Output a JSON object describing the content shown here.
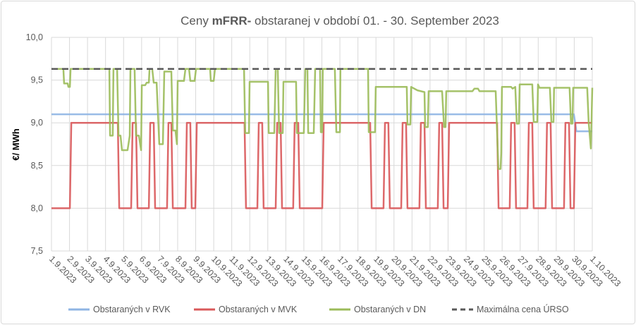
{
  "chart_data": {
    "type": "line",
    "title_parts": [
      "Ceny ",
      "mFRR-",
      " obstaranej v období 01. - 30. September 2023"
    ],
    "xlabel": "",
    "ylabel": "€/ MWh",
    "ylim": [
      7.5,
      10.0
    ],
    "yticks": [
      7.5,
      8.0,
      8.5,
      9.0,
      9.5,
      10.0
    ],
    "ytick_labels": [
      "7,5",
      "8,0",
      "8,5",
      "9,0",
      "9,5",
      "10,0"
    ],
    "x_unit": "days since 1.9.2023",
    "xlim": [
      0,
      30
    ],
    "xtick_labels": [
      "1.9.2023",
      "2.9.2023",
      "3.9.2023",
      "4.9.2023",
      "5.9.2023",
      "6.9.2023",
      "7.9.2023",
      "8.9.2023",
      "9.9.2023",
      "10.9.2023",
      "11.9.2023",
      "12.9.2023",
      "13.9.2023",
      "14.9.2023",
      "15.9.2023",
      "16.9.2023",
      "17.9.2023",
      "18.9.2023",
      "19.9.2023",
      "20.9.2023",
      "21.9.2023",
      "22.9.2023",
      "23.9.2023",
      "24.9.2023",
      "25.9.2023",
      "26.9.2023",
      "27.9.2023",
      "28.9.2023",
      "29.9.2023",
      "30.9.2023",
      "1.10.2023"
    ],
    "grid": true,
    "legend_position": "bottom",
    "series": [
      {
        "name": "Obstaraných v RVK",
        "color": "#8eb4e3",
        "dash": false,
        "points": [
          [
            0,
            9.1
          ],
          [
            28.98,
            9.1
          ],
          [
            29.12,
            8.9
          ],
          [
            30,
            8.9
          ]
        ]
      },
      {
        "name": "Obstaraných v MVK",
        "color": "#d9585a",
        "dash": false,
        "start_value": 8.0,
        "switch_days": [
          1.02,
          3.68,
          4.42,
          4.69,
          5.4,
          5.67,
          6.41,
          6.65,
          7.43,
          7.7,
          7.98,
          10.71,
          11.42,
          11.69,
          12.44,
          12.71,
          13.41,
          13.69,
          15.02,
          17.68,
          18.42,
          18.69,
          19.4,
          19.67,
          20.41,
          20.69,
          21.43,
          21.67,
          21.98,
          24.72,
          25.42,
          25.69,
          26.4,
          26.67,
          27.41,
          27.69,
          28.43,
          28.71,
          28.98
        ],
        "alt_values": [
          8.0,
          9.0
        ]
      },
      {
        "name": "Obstaraných v DN",
        "color": "#9bbb59",
        "dash": false,
        "points": [
          [
            0,
            9.63
          ],
          [
            0.66,
            9.63
          ],
          [
            0.7,
            9.46
          ],
          [
            0.9,
            9.46
          ],
          [
            0.94,
            9.42
          ],
          [
            1.02,
            9.42
          ],
          [
            1.06,
            9.63
          ],
          [
            3.21,
            9.63
          ],
          [
            3.25,
            8.85
          ],
          [
            3.4,
            8.85
          ],
          [
            3.44,
            9.63
          ],
          [
            3.64,
            9.63
          ],
          [
            3.72,
            8.85
          ],
          [
            3.83,
            8.85
          ],
          [
            3.91,
            8.68
          ],
          [
            4.22,
            8.68
          ],
          [
            4.34,
            8.85
          ],
          [
            4.38,
            9.63
          ],
          [
            4.61,
            9.63
          ],
          [
            4.69,
            8.85
          ],
          [
            4.85,
            8.85
          ],
          [
            4.97,
            8.68
          ],
          [
            5.01,
            9.44
          ],
          [
            5.2,
            9.44
          ],
          [
            5.28,
            9.47
          ],
          [
            5.4,
            9.47
          ],
          [
            5.44,
            9.63
          ],
          [
            5.59,
            9.63
          ],
          [
            5.67,
            9.47
          ],
          [
            5.83,
            9.47
          ],
          [
            5.98,
            8.75
          ],
          [
            6.18,
            8.75
          ],
          [
            6.26,
            9.6
          ],
          [
            6.65,
            9.6
          ],
          [
            6.73,
            8.91
          ],
          [
            6.88,
            8.91
          ],
          [
            6.96,
            8.75
          ],
          [
            7.0,
            9.49
          ],
          [
            7.35,
            9.49
          ],
          [
            7.43,
            9.63
          ],
          [
            7.63,
            9.63
          ],
          [
            7.7,
            9.49
          ],
          [
            7.94,
            9.49
          ],
          [
            8.02,
            9.63
          ],
          [
            8.8,
            9.63
          ],
          [
            8.84,
            9.49
          ],
          [
            9.0,
            9.49
          ],
          [
            9.07,
            9.63
          ],
          [
            10.68,
            9.63
          ],
          [
            10.75,
            8.88
          ],
          [
            10.95,
            8.88
          ],
          [
            10.99,
            9.48
          ],
          [
            12.01,
            9.48
          ],
          [
            12.05,
            8.88
          ],
          [
            12.36,
            8.88
          ],
          [
            12.44,
            9.63
          ],
          [
            12.55,
            9.63
          ],
          [
            12.63,
            8.88
          ],
          [
            12.83,
            8.88
          ],
          [
            12.87,
            9.48
          ],
          [
            13.57,
            9.48
          ],
          [
            13.61,
            8.88
          ],
          [
            14.0,
            8.88
          ],
          [
            14.08,
            9.63
          ],
          [
            14.2,
            9.63
          ],
          [
            14.24,
            8.88
          ],
          [
            14.55,
            8.88
          ],
          [
            14.63,
            9.63
          ],
          [
            14.9,
            9.63
          ],
          [
            14.94,
            8.89
          ],
          [
            15.02,
            8.89
          ],
          [
            15.05,
            9.63
          ],
          [
            15.72,
            9.63
          ],
          [
            15.8,
            8.89
          ],
          [
            16.0,
            8.89
          ],
          [
            16.03,
            9.63
          ],
          [
            17.56,
            9.63
          ],
          [
            17.6,
            8.89
          ],
          [
            17.95,
            8.89
          ],
          [
            17.99,
            9.42
          ],
          [
            19.71,
            9.42
          ],
          [
            19.75,
            8.98
          ],
          [
            19.91,
            8.98
          ],
          [
            19.95,
            9.42
          ],
          [
            20.3,
            9.38
          ],
          [
            20.69,
            9.36
          ],
          [
            20.73,
            8.95
          ],
          [
            20.88,
            8.95
          ],
          [
            20.92,
            9.37
          ],
          [
            21.67,
            9.37
          ],
          [
            21.78,
            8.95
          ],
          [
            21.86,
            8.95
          ],
          [
            21.9,
            9.37
          ],
          [
            23.35,
            9.37
          ],
          [
            23.46,
            9.4
          ],
          [
            23.66,
            9.4
          ],
          [
            23.74,
            9.37
          ],
          [
            24.64,
            9.37
          ],
          [
            24.79,
            8.46
          ],
          [
            24.91,
            8.46
          ],
          [
            24.95,
            8.65
          ],
          [
            24.99,
            9.42
          ],
          [
            25.5,
            9.42
          ],
          [
            25.58,
            9.4
          ],
          [
            25.73,
            9.42
          ],
          [
            25.81,
            8.99
          ],
          [
            25.93,
            8.99
          ],
          [
            25.97,
            9.45
          ],
          [
            26.67,
            9.45
          ],
          [
            26.75,
            9.01
          ],
          [
            26.95,
            9.01
          ],
          [
            26.99,
            9.45
          ],
          [
            27.07,
            9.41
          ],
          [
            27.65,
            9.41
          ],
          [
            27.73,
            9.01
          ],
          [
            27.85,
            9.01
          ],
          [
            27.88,
            9.41
          ],
          [
            28.74,
            9.41
          ],
          [
            28.82,
            8.99
          ],
          [
            28.9,
            8.99
          ],
          [
            28.94,
            9.41
          ],
          [
            29.72,
            9.41
          ],
          [
            29.8,
            9.0
          ],
          [
            29.92,
            8.7
          ],
          [
            30,
            9.41
          ]
        ]
      },
      {
        "name": "Maximálna cena ÚRSO",
        "color": "#595959",
        "dash": true,
        "points": [
          [
            0,
            9.63
          ],
          [
            30,
            9.63
          ]
        ]
      }
    ]
  }
}
